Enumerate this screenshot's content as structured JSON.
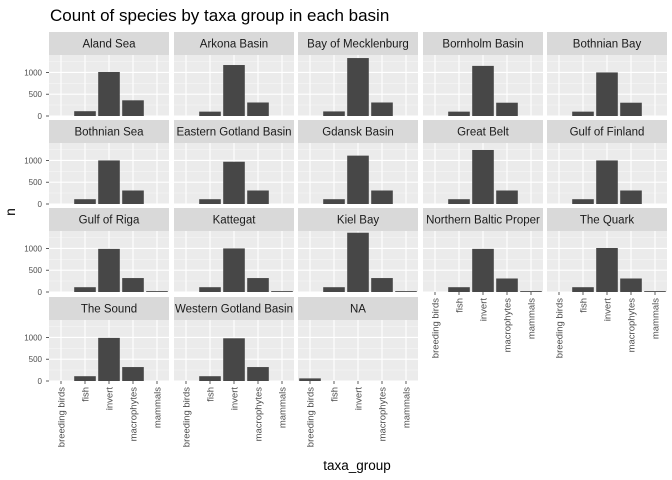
{
  "chart_data": {
    "type": "bar",
    "title": "Count of species by taxa group in each basin",
    "xlabel": "taxa_group",
    "ylabel": "n",
    "categories": [
      "breeding birds",
      "fish",
      "invert",
      "macrophytes",
      "mammals"
    ],
    "y_ticks": [
      0,
      500,
      1000
    ],
    "y_tick_labels": [
      "0",
      "500",
      "1000"
    ],
    "ylim": [
      0,
      1400
    ],
    "grid": true,
    "facets": [
      {
        "name": "Aland Sea",
        "values": [
          0,
          110,
          1010,
          360,
          0
        ]
      },
      {
        "name": "Arkona Basin",
        "values": [
          0,
          100,
          1170,
          310,
          0
        ]
      },
      {
        "name": "Bay of Mecklenburg",
        "values": [
          0,
          105,
          1330,
          310,
          0
        ]
      },
      {
        "name": "Bornholm Basin",
        "values": [
          0,
          100,
          1150,
          305,
          0
        ]
      },
      {
        "name": "Bothnian Bay",
        "values": [
          0,
          100,
          1000,
          305,
          0
        ]
      },
      {
        "name": "Bothnian Sea",
        "values": [
          0,
          110,
          1000,
          310,
          0
        ]
      },
      {
        "name": "Eastern Gotland Basin",
        "values": [
          0,
          110,
          970,
          310,
          0
        ]
      },
      {
        "name": "Gdansk Basin",
        "values": [
          0,
          110,
          1110,
          310,
          0
        ]
      },
      {
        "name": "Great Belt",
        "values": [
          0,
          110,
          1240,
          310,
          0
        ]
      },
      {
        "name": "Gulf of Finland",
        "values": [
          0,
          110,
          1000,
          310,
          0
        ]
      },
      {
        "name": "Gulf of Riga",
        "values": [
          0,
          110,
          990,
          320,
          20
        ]
      },
      {
        "name": "Kattegat",
        "values": [
          0,
          110,
          1000,
          320,
          20
        ]
      },
      {
        "name": "Kiel Bay",
        "values": [
          0,
          110,
          1360,
          320,
          20
        ]
      },
      {
        "name": "Northern Baltic Proper",
        "values": [
          0,
          110,
          990,
          310,
          20
        ]
      },
      {
        "name": "The Quark",
        "values": [
          0,
          110,
          1010,
          310,
          20
        ]
      },
      {
        "name": "The Sound",
        "values": [
          0,
          110,
          990,
          320,
          0
        ]
      },
      {
        "name": "Western Gotland Basin",
        "values": [
          0,
          110,
          980,
          320,
          0
        ]
      },
      {
        "name": "NA",
        "values": [
          60,
          0,
          0,
          0,
          0
        ]
      }
    ]
  }
}
